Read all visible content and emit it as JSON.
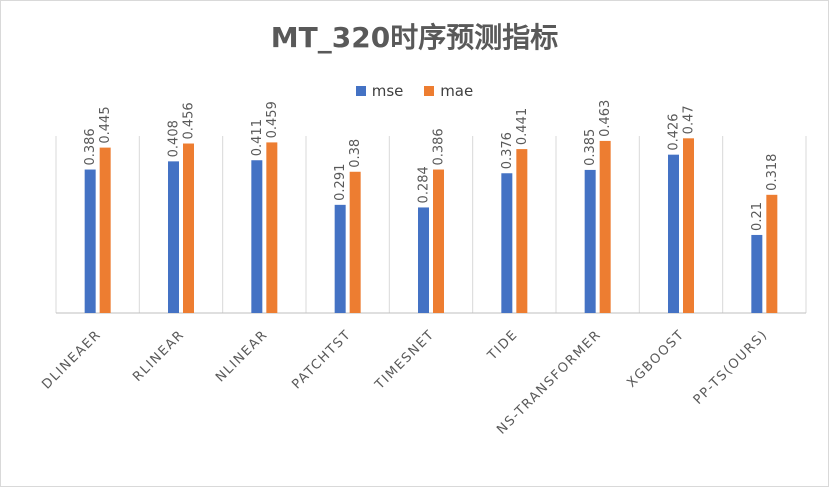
{
  "chart_data": {
    "type": "bar",
    "title": "MT_320时序预测指标",
    "categories": [
      "DLINEAER",
      "RLINEAR",
      "NLINEAR",
      "PATCHTST",
      "TIMESNET",
      "TIDE",
      "NS-TRANSFORMER",
      "XGBOOST",
      "PP-TS(OURS)"
    ],
    "series": [
      {
        "name": "mse",
        "color": "#4472c4",
        "values": [
          0.386,
          0.408,
          0.411,
          0.291,
          0.284,
          0.376,
          0.385,
          0.426,
          0.21
        ],
        "labels": [
          "0.386",
          "0.408",
          "0.411",
          "0.291",
          "0.284",
          "0.376",
          "0.385",
          "0.426",
          "0.21"
        ]
      },
      {
        "name": "mae",
        "color": "#ed7d31",
        "values": [
          0.445,
          0.456,
          0.459,
          0.38,
          0.386,
          0.441,
          0.463,
          0.47,
          0.318
        ],
        "labels": [
          "0.445",
          "0.456",
          "0.459",
          "0.38",
          "0.386",
          "0.441",
          "0.463",
          "0.47",
          "0.318"
        ]
      }
    ],
    "ylim": [
      0,
      0.6
    ],
    "legend_position": "top",
    "grid": "vertical category separators",
    "xlabel": "",
    "ylabel": ""
  }
}
